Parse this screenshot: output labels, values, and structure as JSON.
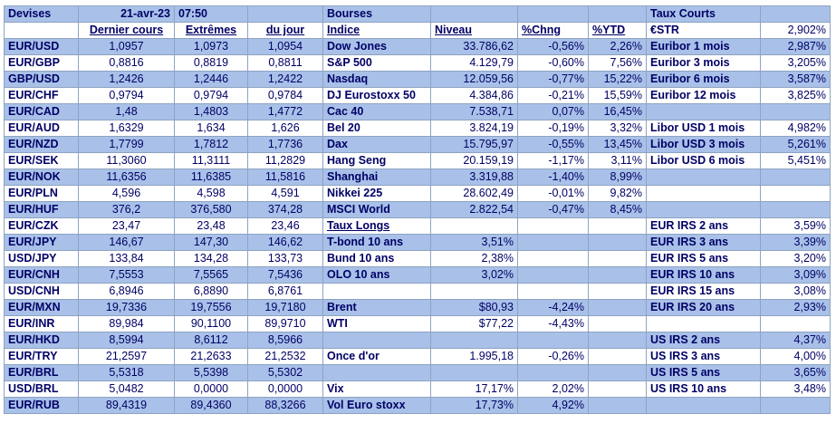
{
  "header": {
    "devises": "Devises",
    "date": "21-avr-23",
    "time": "07:50",
    "bourses": "Bourses",
    "taux_courts": "Taux Courts"
  },
  "subheader": {
    "col1": "Dernier cours",
    "col2": "Extrêmes",
    "col3": "du jour",
    "col4": "Indice",
    "col5": "Niveau",
    "col6": "%Chng",
    "col7": "%YTD",
    "col8": "€STR",
    "col9": "2,902%"
  },
  "rows": [
    {
      "fx": "EUR/USD",
      "last": "1,0957",
      "hi": "1,0973",
      "lo": "1,0954",
      "idx": "Dow Jones",
      "lvl": "33.786,62",
      "chg": "-0,56%",
      "ytd": "2,26%",
      "rate": "Euribor 1 mois",
      "rv": "2,987%"
    },
    {
      "fx": "EUR/GBP",
      "last": "0,8816",
      "hi": "0,8819",
      "lo": "0,8811",
      "idx": "S&P 500",
      "lvl": "4.129,79",
      "chg": "-0,60%",
      "ytd": "7,56%",
      "rate": "Euribor 3 mois",
      "rv": "3,205%"
    },
    {
      "fx": "GBP/USD",
      "last": "1,2426",
      "hi": "1,2446",
      "lo": "1,2422",
      "idx": "Nasdaq",
      "lvl": "12.059,56",
      "chg": "-0,77%",
      "ytd": "15,22%",
      "rate": "Euribor 6 mois",
      "rv": "3,587%"
    },
    {
      "fx": "EUR/CHF",
      "last": "0,9794",
      "hi": "0,9794",
      "lo": "0,9784",
      "idx": "DJ Eurostoxx 50",
      "lvl": "4.384,86",
      "chg": "-0,21%",
      "ytd": "15,59%",
      "rate": "Euribor 12 mois",
      "rv": "3,825%"
    },
    {
      "fx": "EUR/CAD",
      "last": "1,48",
      "hi": "1,4803",
      "lo": "1,4772",
      "idx": "Cac 40",
      "lvl": "7.538,71",
      "chg": "0,07%",
      "ytd": "16,45%",
      "rate": "",
      "rv": ""
    },
    {
      "fx": "EUR/AUD",
      "last": "1,6329",
      "hi": "1,634",
      "lo": "1,626",
      "idx": "Bel 20",
      "lvl": "3.824,19",
      "chg": "-0,19%",
      "ytd": "3,32%",
      "rate": "Libor USD 1 mois",
      "rv": "4,982%"
    },
    {
      "fx": "EUR/NZD",
      "last": "1,7799",
      "hi": "1,7812",
      "lo": "1,7736",
      "idx": "Dax",
      "lvl": "15.795,97",
      "chg": "-0,55%",
      "ytd": "13,45%",
      "rate": "Libor USD 3 mois",
      "rv": "5,261%"
    },
    {
      "fx": "EUR/SEK",
      "last": "11,3060",
      "hi": "11,3111",
      "lo": "11,2829",
      "idx": "Hang Seng",
      "lvl": "20.159,19",
      "chg": "-1,17%",
      "ytd": "3,11%",
      "rate": "Libor USD 6 mois",
      "rv": "5,451%"
    },
    {
      "fx": "EUR/NOK",
      "last": "11,6356",
      "hi": "11,6385",
      "lo": "11,5816",
      "idx": "Shanghai",
      "lvl": "3.319,88",
      "chg": "-1,40%",
      "ytd": "8,99%",
      "rate": "",
      "rv": ""
    },
    {
      "fx": "EUR/PLN",
      "last": "4,596",
      "hi": "4,598",
      "lo": "4,591",
      "idx": "Nikkei 225",
      "lvl": "28.602,49",
      "chg": "-0,01%",
      "ytd": "9,82%",
      "rate": "",
      "rv": ""
    },
    {
      "fx": "EUR/HUF",
      "last": "376,2",
      "hi": "376,580",
      "lo": "374,28",
      "idx": "MSCI World",
      "lvl": "2.822,54",
      "chg": "-0,47%",
      "ytd": "8,45%",
      "rate": "",
      "rv": ""
    },
    {
      "fx": "EUR/CZK",
      "last": "23,47",
      "hi": "23,48",
      "lo": "23,46",
      "idx": "Taux Longs",
      "lvl": "",
      "chg": "",
      "ytd": "",
      "rate": "EUR IRS 2 ans",
      "rv": "3,59%"
    },
    {
      "fx": "EUR/JPY",
      "last": "146,67",
      "hi": "147,30",
      "lo": "146,62",
      "idx": "T-bond 10 ans",
      "lvl": "3,51%",
      "chg": "",
      "ytd": "",
      "rate": "EUR IRS 3 ans",
      "rv": "3,39%"
    },
    {
      "fx": "USD/JPY",
      "last": "133,84",
      "hi": "134,28",
      "lo": "133,73",
      "idx": "Bund 10 ans",
      "lvl": "2,38%",
      "chg": "",
      "ytd": "",
      "rate": "EUR IRS 5 ans",
      "rv": "3,20%"
    },
    {
      "fx": "EUR/CNH",
      "last": "7,5553",
      "hi": "7,5565",
      "lo": "7,5436",
      "idx": "OLO 10 ans",
      "lvl": "3,02%",
      "chg": "",
      "ytd": "",
      "rate": "EUR IRS 10 ans",
      "rv": "3,09%"
    },
    {
      "fx": "USD/CNH",
      "last": "6,8946",
      "hi": "6,8890",
      "lo": "6,8761",
      "idx": "",
      "lvl": "",
      "chg": "",
      "ytd": "",
      "rate": "EUR IRS 15 ans",
      "rv": "3,08%"
    },
    {
      "fx": "EUR/MXN",
      "last": "19,7336",
      "hi": "19,7556",
      "lo": "19,7180",
      "idx": "Brent",
      "lvl": "$80,93",
      "chg": "-4,24%",
      "ytd": "",
      "rate": "EUR IRS 20 ans",
      "rv": "2,93%"
    },
    {
      "fx": "EUR/INR",
      "last": "89,984",
      "hi": "90,1100",
      "lo": "89,9710",
      "idx": "WTI",
      "lvl": "$77,22",
      "chg": "-4,43%",
      "ytd": "",
      "rate": "",
      "rv": ""
    },
    {
      "fx": "EUR/HKD",
      "last": "8,5994",
      "hi": "8,6112",
      "lo": "8,5966",
      "idx": "",
      "lvl": "",
      "chg": "",
      "ytd": "",
      "rate": "US IRS 2 ans",
      "rv": "4,37%"
    },
    {
      "fx": "EUR/TRY",
      "last": "21,2597",
      "hi": "21,2633",
      "lo": "21,2532",
      "idx": "Once d'or",
      "lvl": "1.995,18",
      "chg": "-0,26%",
      "ytd": "",
      "rate": "US IRS 3 ans",
      "rv": "4,00%"
    },
    {
      "fx": "EUR/BRL",
      "last": "5,5318",
      "hi": "5,5398",
      "lo": "5,5302",
      "idx": "",
      "lvl": "",
      "chg": "",
      "ytd": "",
      "rate": "US IRS 5 ans",
      "rv": "3,65%"
    },
    {
      "fx": "USD/BRL",
      "last": "5,0482",
      "hi": "0,0000",
      "lo": "0,0000",
      "idx": "Vix",
      "lvl": "17,17%",
      "chg": "2,02%",
      "ytd": "",
      "rate": "US IRS 10 ans",
      "rv": "3,48%"
    },
    {
      "fx": "EUR/RUB",
      "last": "89,4319",
      "hi": "89,4360",
      "lo": "88,3266",
      "idx": "Vol Euro stoxx",
      "lvl": "17,73%",
      "chg": "4,92%",
      "ytd": "",
      "rate": "",
      "rv": ""
    }
  ],
  "colors": {
    "band": "#a9c1e8",
    "white": "#ffffff",
    "text": "#000066",
    "grid": "#8ea3c2"
  }
}
